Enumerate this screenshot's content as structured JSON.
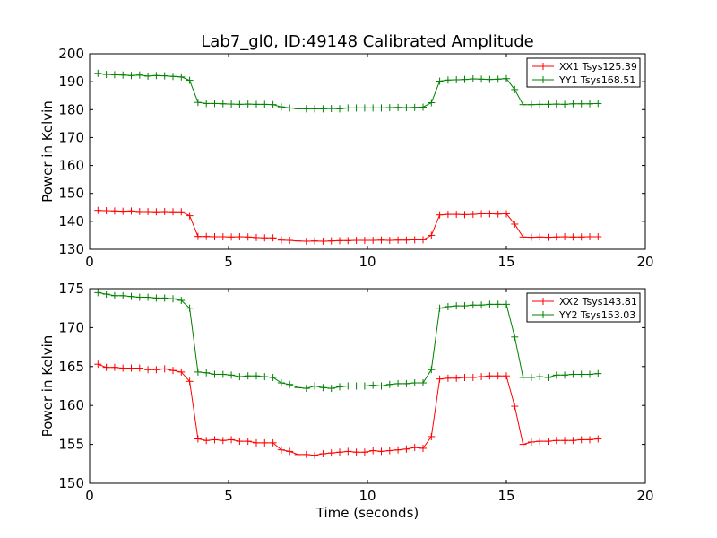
{
  "figure": {
    "title": "Lab7_gl0, ID:49148 Calibrated Amplitude",
    "xlabel": "Time (seconds)"
  },
  "chart_data": [
    {
      "type": "line",
      "title": "Lab7_gl0, ID:49148 Calibrated Amplitude",
      "xlabel": "",
      "ylabel": "Power in Kelvin",
      "xlim": [
        0,
        20
      ],
      "ylim": [
        130,
        200
      ],
      "xticks": [
        0,
        5,
        10,
        15,
        20
      ],
      "yticks": [
        130,
        140,
        150,
        160,
        170,
        180,
        190,
        200
      ],
      "grid": false,
      "legend_position": "top-right",
      "x": [
        0.3,
        0.6,
        0.9,
        1.2,
        1.5,
        1.8,
        2.1,
        2.4,
        2.7,
        3.0,
        3.3,
        3.6,
        3.9,
        4.2,
        4.5,
        4.8,
        5.1,
        5.4,
        5.7,
        6.0,
        6.3,
        6.6,
        6.9,
        7.2,
        7.5,
        7.8,
        8.1,
        8.4,
        8.7,
        9.0,
        9.3,
        9.6,
        9.9,
        10.2,
        10.5,
        10.8,
        11.1,
        11.4,
        11.7,
        12.0,
        12.3,
        12.6,
        12.9,
        13.2,
        13.5,
        13.8,
        14.1,
        14.4,
        14.7,
        15.0,
        15.3,
        15.6,
        15.9,
        16.2,
        16.5,
        16.8,
        17.1,
        17.4,
        17.7,
        18.0,
        18.3
      ],
      "series": [
        {
          "name": "XX1 Tsys125.39",
          "color": "#ff0000",
          "values": [
            143.9,
            143.8,
            143.7,
            143.6,
            143.7,
            143.5,
            143.5,
            143.4,
            143.5,
            143.4,
            143.4,
            142.0,
            134.6,
            134.6,
            134.5,
            134.5,
            134.4,
            134.5,
            134.4,
            134.2,
            134.1,
            134.1,
            133.3,
            133.2,
            133.0,
            132.9,
            133.0,
            132.9,
            133.0,
            133.1,
            133.1,
            133.2,
            133.2,
            133.2,
            133.3,
            133.2,
            133.3,
            133.3,
            133.4,
            133.4,
            135.0,
            142.3,
            142.5,
            142.5,
            142.4,
            142.5,
            142.7,
            142.7,
            142.6,
            142.7,
            139.0,
            134.4,
            134.3,
            134.4,
            134.3,
            134.4,
            134.5,
            134.4,
            134.4,
            134.5,
            134.5
          ]
        },
        {
          "name": "YY1 Tsys168.51",
          "color": "#008000",
          "values": [
            193.0,
            192.6,
            192.5,
            192.4,
            192.2,
            192.4,
            192.0,
            192.2,
            192.1,
            191.9,
            191.7,
            190.5,
            182.6,
            182.2,
            182.2,
            182.1,
            182.0,
            181.9,
            182.0,
            181.9,
            181.9,
            181.8,
            181.0,
            180.6,
            180.3,
            180.3,
            180.3,
            180.3,
            180.4,
            180.3,
            180.6,
            180.6,
            180.6,
            180.6,
            180.6,
            180.7,
            180.8,
            180.7,
            180.8,
            180.9,
            182.5,
            190.2,
            190.6,
            190.7,
            190.8,
            191.0,
            190.9,
            190.8,
            190.9,
            191.1,
            187.2,
            181.8,
            181.8,
            181.9,
            181.9,
            182.0,
            181.9,
            182.1,
            182.1,
            182.1,
            182.2
          ]
        }
      ]
    },
    {
      "type": "line",
      "title": "",
      "xlabel": "Time (seconds)",
      "ylabel": "Power in Kelvin",
      "xlim": [
        0,
        20
      ],
      "ylim": [
        150,
        175
      ],
      "xticks": [
        0,
        5,
        10,
        15,
        20
      ],
      "yticks": [
        150,
        155,
        160,
        165,
        170,
        175
      ],
      "grid": false,
      "legend_position": "top-right",
      "x": [
        0.3,
        0.6,
        0.9,
        1.2,
        1.5,
        1.8,
        2.1,
        2.4,
        2.7,
        3.0,
        3.3,
        3.6,
        3.9,
        4.2,
        4.5,
        4.8,
        5.1,
        5.4,
        5.7,
        6.0,
        6.3,
        6.6,
        6.9,
        7.2,
        7.5,
        7.8,
        8.1,
        8.4,
        8.7,
        9.0,
        9.3,
        9.6,
        9.9,
        10.2,
        10.5,
        10.8,
        11.1,
        11.4,
        11.7,
        12.0,
        12.3,
        12.6,
        12.9,
        13.2,
        13.5,
        13.8,
        14.1,
        14.4,
        14.7,
        15.0,
        15.3,
        15.6,
        15.9,
        16.2,
        16.5,
        16.8,
        17.1,
        17.4,
        17.7,
        18.0,
        18.3
      ],
      "series": [
        {
          "name": "XX2 Tsys143.81",
          "color": "#ff0000",
          "values": [
            165.3,
            164.9,
            164.9,
            164.8,
            164.8,
            164.8,
            164.6,
            164.6,
            164.7,
            164.5,
            164.3,
            163.1,
            155.7,
            155.5,
            155.6,
            155.5,
            155.6,
            155.4,
            155.4,
            155.2,
            155.2,
            155.2,
            154.3,
            154.1,
            153.7,
            153.7,
            153.6,
            153.8,
            153.9,
            154.0,
            154.1,
            154.0,
            154.0,
            154.2,
            154.1,
            154.2,
            154.3,
            154.4,
            154.6,
            154.5,
            156.0,
            163.4,
            163.5,
            163.5,
            163.6,
            163.6,
            163.7,
            163.8,
            163.8,
            163.8,
            159.9,
            155.0,
            155.3,
            155.4,
            155.4,
            155.5,
            155.5,
            155.5,
            155.6,
            155.6,
            155.7
          ]
        },
        {
          "name": "YY2 Tsys153.03",
          "color": "#008000",
          "values": [
            174.5,
            174.3,
            174.1,
            174.1,
            174.0,
            173.9,
            173.9,
            173.8,
            173.8,
            173.7,
            173.5,
            172.5,
            164.3,
            164.2,
            164.0,
            164.0,
            163.9,
            163.7,
            163.8,
            163.8,
            163.7,
            163.6,
            162.9,
            162.7,
            162.3,
            162.2,
            162.5,
            162.3,
            162.2,
            162.4,
            162.5,
            162.5,
            162.5,
            162.6,
            162.5,
            162.7,
            162.8,
            162.8,
            162.9,
            162.9,
            164.6,
            172.5,
            172.7,
            172.8,
            172.8,
            172.9,
            172.9,
            173.0,
            173.0,
            173.0,
            168.8,
            163.6,
            163.6,
            163.7,
            163.6,
            163.9,
            163.9,
            164.0,
            164.0,
            164.0,
            164.1
          ]
        }
      ]
    }
  ]
}
